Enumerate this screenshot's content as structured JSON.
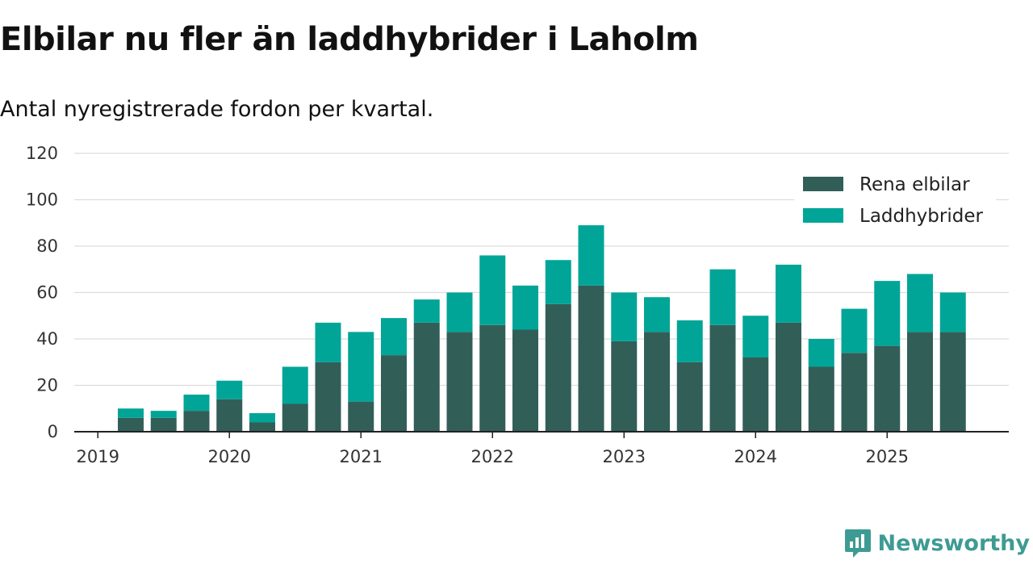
{
  "title": "Elbilar nu fler än laddhybrider i Laholm",
  "subtitle": "Antal nyregistrerade fordon per kvartal.",
  "logo": {
    "text": "Newsworthy",
    "icon": "newsworthy-chart-icon",
    "color": "#3e9b93"
  },
  "chart_data": {
    "type": "bar",
    "stacked": true,
    "categories": [
      "2019 Q2",
      "2019 Q3",
      "2019 Q4",
      "2020 Q1",
      "2020 Q2",
      "2020 Q3",
      "2020 Q4",
      "2021 Q1",
      "2021 Q2",
      "2021 Q3",
      "2021 Q4",
      "2022 Q1",
      "2022 Q2",
      "2022 Q3",
      "2022 Q4",
      "2023 Q1",
      "2023 Q2",
      "2023 Q3",
      "2023 Q4",
      "2024 Q1",
      "2024 Q2",
      "2024 Q3",
      "2024 Q4",
      "2025 Q1",
      "2025 Q2",
      "2025 Q3"
    ],
    "series": [
      {
        "name": "Rena elbilar",
        "color": "#325e58",
        "values": [
          6,
          6,
          9,
          14,
          4,
          12,
          30,
          13,
          33,
          47,
          43,
          46,
          44,
          55,
          63,
          39,
          43,
          30,
          46,
          32,
          47,
          28,
          34,
          37,
          43,
          43
        ]
      },
      {
        "name": "Laddhybrider",
        "color": "#00a598",
        "values": [
          4,
          3,
          7,
          8,
          4,
          16,
          17,
          30,
          16,
          10,
          17,
          30,
          19,
          19,
          26,
          21,
          15,
          18,
          24,
          18,
          25,
          12,
          19,
          28,
          25,
          17
        ]
      }
    ],
    "x_tick_labels": [
      "2019",
      "2020",
      "2021",
      "2022",
      "2023",
      "2024",
      "2025"
    ],
    "y_ticks": [
      0,
      20,
      40,
      60,
      80,
      100,
      120
    ],
    "ylim": [
      0,
      120
    ],
    "grid": true,
    "legend_position": "top-right"
  }
}
